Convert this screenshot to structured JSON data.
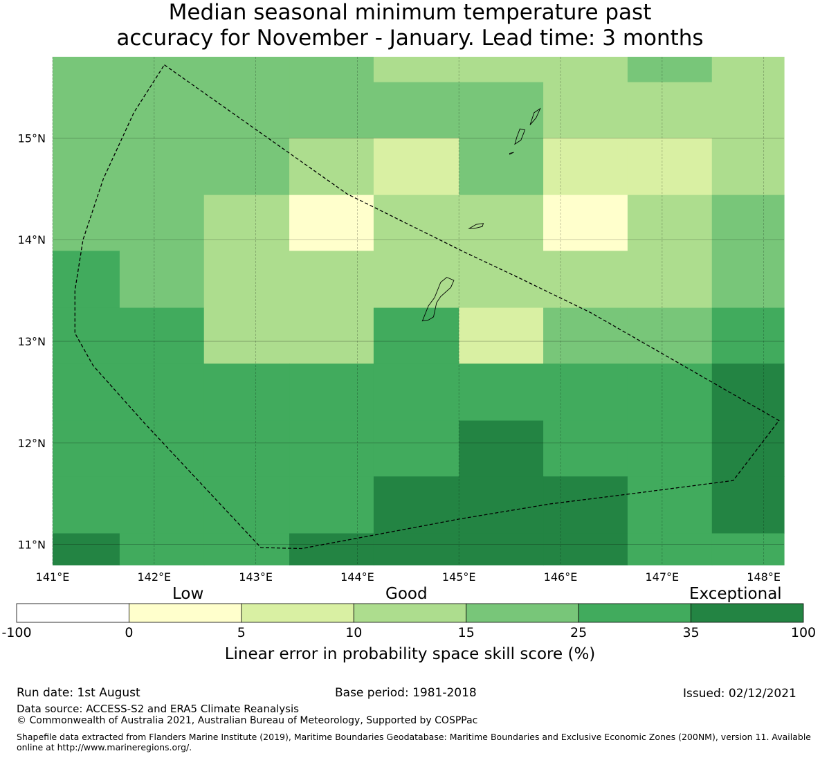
{
  "title_line1": "Median seasonal minimum temperature past",
  "title_line2": "accuracy for November - January. Lead time: 3 months",
  "map": {
    "lon_range": [
      141.0,
      148.2
    ],
    "lat_range": [
      10.8,
      15.8
    ],
    "lon_ticks": [
      141,
      142,
      143,
      144,
      145,
      146,
      147,
      148
    ],
    "lon_tick_labels": [
      "141°E",
      "142°E",
      "143°E",
      "144°E",
      "145°E",
      "146°E",
      "147°E",
      "148°E"
    ],
    "lat_ticks": [
      11,
      12,
      13,
      14,
      15
    ],
    "lat_tick_labels": [
      "11°N",
      "12°N",
      "13°N",
      "14°N",
      "15°N"
    ],
    "grid": true,
    "cell_lon_edges": [
      141.0,
      141.66,
      142.49,
      143.33,
      144.16,
      145.0,
      145.83,
      146.66,
      147.49,
      148.2
    ],
    "cell_lat_edges": [
      15.8,
      15.55,
      15.0,
      14.44,
      13.89,
      13.33,
      12.78,
      12.22,
      11.67,
      11.11,
      10.8
    ],
    "cell_values": [
      [
        20,
        20,
        20,
        20,
        12,
        12,
        12,
        20,
        12
      ],
      [
        20,
        20,
        20,
        20,
        20,
        20,
        12,
        12,
        12
      ],
      [
        20,
        20,
        20,
        12,
        7,
        20,
        7,
        7,
        12
      ],
      [
        20,
        20,
        12,
        2,
        12,
        12,
        2,
        12,
        20
      ],
      [
        30,
        20,
        12,
        12,
        12,
        12,
        12,
        12,
        20
      ],
      [
        30,
        30,
        12,
        12,
        30,
        7,
        20,
        20,
        30
      ],
      [
        30,
        30,
        30,
        30,
        30,
        30,
        30,
        30,
        50
      ],
      [
        30,
        30,
        30,
        30,
        30,
        50,
        30,
        30,
        50
      ],
      [
        30,
        30,
        30,
        30,
        50,
        50,
        50,
        30,
        50
      ],
      [
        50,
        30,
        30,
        50,
        50,
        50,
        50,
        30,
        30
      ]
    ],
    "eez_boundary": [
      [
        142.1,
        15.72
      ],
      [
        143.9,
        14.45
      ],
      [
        145.05,
        13.88
      ],
      [
        145.6,
        13.62
      ],
      [
        146.3,
        13.28
      ],
      [
        147.0,
        12.88
      ],
      [
        148.15,
        12.22
      ],
      [
        147.7,
        11.63
      ],
      [
        146.7,
        11.5
      ],
      [
        145.9,
        11.4
      ],
      [
        145.0,
        11.25
      ],
      [
        144.2,
        11.1
      ],
      [
        143.45,
        10.96
      ],
      [
        143.05,
        10.97
      ],
      [
        141.9,
        12.2
      ],
      [
        141.4,
        12.76
      ],
      [
        141.22,
        13.08
      ],
      [
        141.22,
        13.5
      ],
      [
        141.3,
        14.0
      ],
      [
        141.5,
        14.6
      ],
      [
        141.8,
        15.25
      ],
      [
        142.1,
        15.72
      ]
    ],
    "islands": [
      [
        [
          144.64,
          13.2
        ],
        [
          144.7,
          13.35
        ],
        [
          144.76,
          13.43
        ],
        [
          144.82,
          13.58
        ],
        [
          144.88,
          13.63
        ],
        [
          144.95,
          13.6
        ],
        [
          144.92,
          13.53
        ],
        [
          144.82,
          13.44
        ],
        [
          144.78,
          13.38
        ],
        [
          144.75,
          13.24
        ],
        [
          144.7,
          13.21
        ],
        [
          144.64,
          13.2
        ]
      ],
      [
        [
          145.1,
          14.11
        ],
        [
          145.17,
          14.15
        ],
        [
          145.24,
          14.16
        ],
        [
          145.23,
          14.13
        ],
        [
          145.15,
          14.11
        ],
        [
          145.1,
          14.11
        ]
      ],
      [
        [
          145.55,
          14.94
        ],
        [
          145.61,
          14.98
        ],
        [
          145.65,
          15.08
        ],
        [
          145.6,
          15.09
        ],
        [
          145.57,
          15.01
        ],
        [
          145.55,
          14.94
        ]
      ],
      [
        [
          145.7,
          15.13
        ],
        [
          145.76,
          15.2
        ],
        [
          145.8,
          15.29
        ],
        [
          145.74,
          15.25
        ],
        [
          145.7,
          15.13
        ]
      ],
      [
        [
          145.5,
          14.84
        ],
        [
          145.54,
          14.86
        ],
        [
          145.5,
          14.85
        ]
      ]
    ]
  },
  "legend": {
    "category_labels": [
      "Low",
      "Good",
      "Exceptional"
    ],
    "tick_labels": [
      "-100",
      "0",
      "5",
      "10",
      "15",
      "25",
      "35",
      "100"
    ],
    "bin_colors": [
      "#ffffff",
      "#ffffcc",
      "#d9f0a3",
      "#addd8e",
      "#78c679",
      "#41ab5d",
      "#238443"
    ],
    "label": "Linear error in probability space skill score (%)"
  },
  "footer": {
    "run_date": "Run date: 1st August",
    "base_period": "Base period: 1981-2018",
    "issued": "Issued: 02/12/2021",
    "data_source": "Data source: ACCESS-S2 and ERA5 Climate Reanalysis",
    "copyright": "© Commonwealth of Australia 2021, Australian Bureau of Meteorology, Supported by COSPPac",
    "shapefile": "Shapefile data extracted from Flanders Marine Institute (2019), Maritime Boundaries Geodatabase: Maritime Boundaries and Exclusive Economic Zones (200NM), version 11. Available online at http://www.marineregions.org/."
  }
}
